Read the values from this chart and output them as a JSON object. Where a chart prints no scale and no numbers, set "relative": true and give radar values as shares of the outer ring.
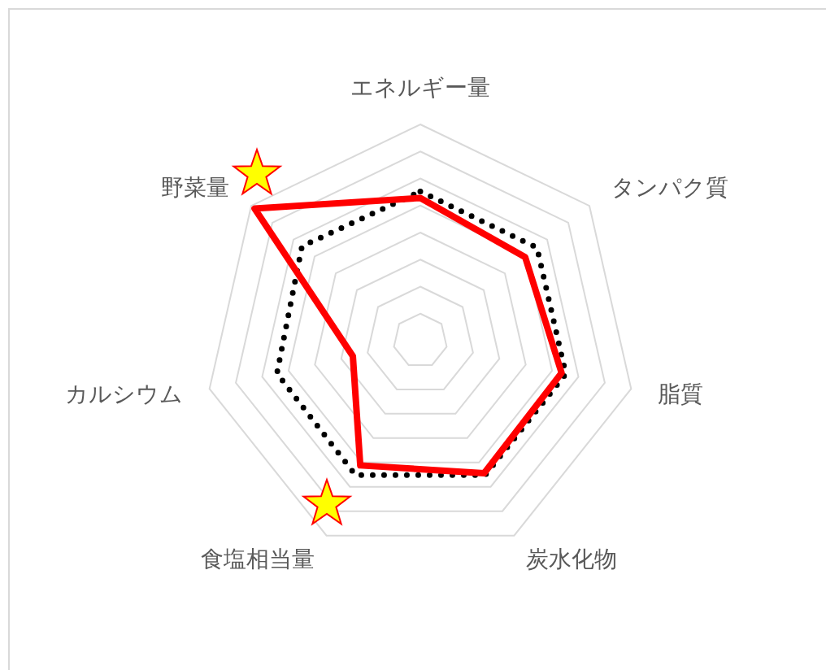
{
  "chart_data": {
    "type": "radar",
    "relative": true,
    "grid": true,
    "marker": "none",
    "categories": [
      "エネルギー量",
      "タンパク質",
      "脂質",
      "炭水化物",
      "食塩相当量",
      "カルシウム",
      "野菜量"
    ],
    "series": [
      {
        "color": "#000000",
        "line_style": "dotted",
        "values": [
          0.69,
          0.69,
          0.69,
          0.69,
          0.69,
          0.68,
          0.7
        ]
      },
      {
        "color": "#ff0000",
        "line_style": "solid",
        "values": [
          0.66,
          0.62,
          0.67,
          0.68,
          0.64,
          0.32,
          0.98
        ]
      }
    ]
  }
}
